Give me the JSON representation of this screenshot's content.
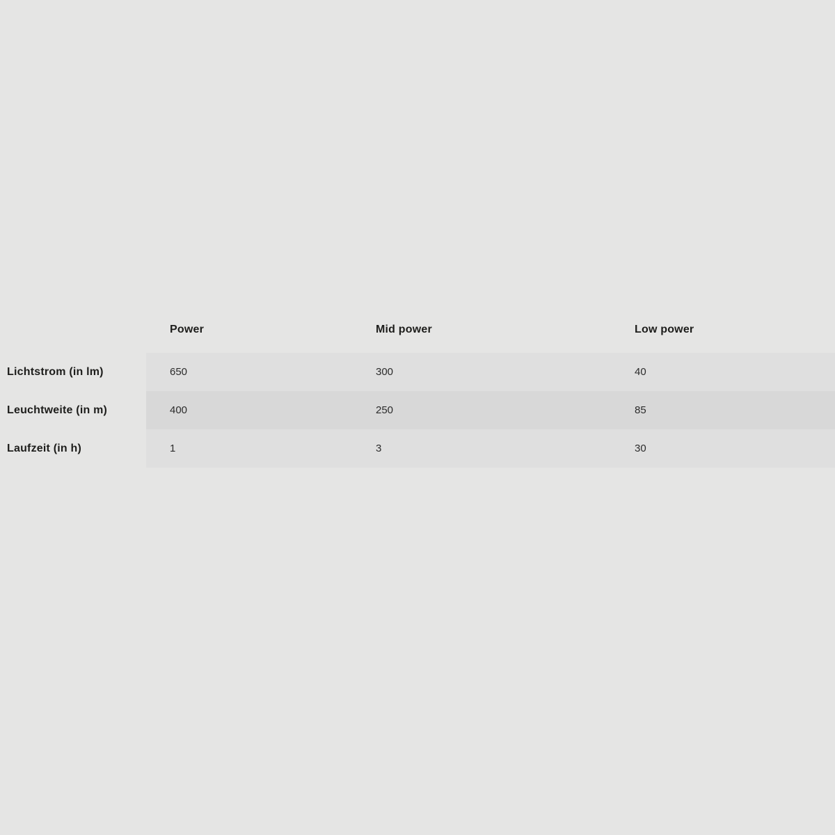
{
  "page": {
    "background_color": "#e5e5e4"
  },
  "chart_data": {
    "type": "table",
    "column_headers": [
      "Power",
      "Mid power",
      "Low power"
    ],
    "row_headers": [
      "Lichtstrom (in lm)",
      "Leuchtweite (in m)",
      "Laufzeit (in h)"
    ],
    "cells": [
      [
        "650",
        "300",
        "40"
      ],
      [
        "400",
        "250",
        "85"
      ],
      [
        "1",
        "3",
        "30"
      ]
    ],
    "layout": {
      "zebra_striping": true,
      "header_row_shaded": false,
      "row_header_column_shaded": false,
      "legend": "none",
      "grid": "none"
    },
    "colors": {
      "background": "#e5e5e4",
      "row_shade_light": "#dfdfdf",
      "row_shade_dark": "#d8d8d8",
      "header_text": "#1d1d1b",
      "value_text": "#2b2b2b"
    }
  }
}
